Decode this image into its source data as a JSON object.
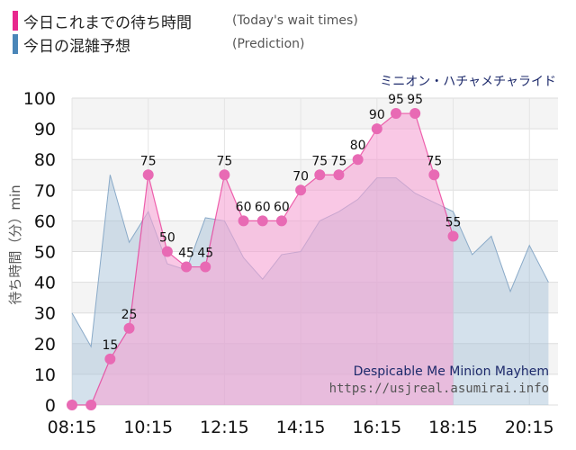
{
  "legend": {
    "today_label": "今日これまでの待ち時間",
    "today_sub": "(Today's wait times)",
    "prediction_label": "今日の混雑予想",
    "prediction_sub": "(Prediction)",
    "today_color": "#e8288e",
    "prediction_color": "#4a86b8"
  },
  "attraction_name": "ミニオン・ハチャメチャライド",
  "watermark": {
    "english_name": "Despicable Me Minion Mayhem",
    "url": "https://usjreal.asumirai.info"
  },
  "chart_data": {
    "type": "area",
    "ylabel": "待ち時間（分）min",
    "ylim": [
      0,
      100
    ],
    "xlim": [
      "08:15",
      "21:00"
    ],
    "yticks": [
      0,
      10,
      20,
      30,
      40,
      50,
      60,
      70,
      80,
      90,
      100
    ],
    "xticks": [
      "08:15",
      "10:15",
      "12:15",
      "14:15",
      "16:15",
      "18:15",
      "20:15"
    ],
    "grid": true,
    "series": [
      {
        "key": "today",
        "color": "#e8288e",
        "fill": "#f5a3d3",
        "points": [
          [
            "08:15",
            0
          ],
          [
            "08:45",
            0
          ],
          [
            "09:15",
            15
          ],
          [
            "09:45",
            25
          ],
          [
            "10:15",
            75
          ],
          [
            "10:45",
            50
          ],
          [
            "11:15",
            45
          ],
          [
            "11:45",
            45
          ],
          [
            "12:15",
            75
          ],
          [
            "12:45",
            60
          ],
          [
            "13:15",
            60
          ],
          [
            "13:45",
            60
          ],
          [
            "14:15",
            70
          ],
          [
            "14:45",
            75
          ],
          [
            "15:15",
            75
          ],
          [
            "15:45",
            80
          ],
          [
            "16:15",
            90
          ],
          [
            "16:45",
            95
          ],
          [
            "17:15",
            95
          ],
          [
            "17:45",
            75
          ],
          [
            "18:15",
            55
          ]
        ],
        "labels": [
          [
            "09:15",
            "15"
          ],
          [
            "09:45",
            "25"
          ],
          [
            "10:15",
            "75"
          ],
          [
            "10:45",
            "50"
          ],
          [
            "11:15",
            "45"
          ],
          [
            "11:45",
            "45"
          ],
          [
            "12:15",
            "75"
          ],
          [
            "12:45",
            "60"
          ],
          [
            "13:15",
            "60"
          ],
          [
            "13:45",
            "60"
          ],
          [
            "14:15",
            "70"
          ],
          [
            "14:45",
            "75"
          ],
          [
            "15:15",
            "75"
          ],
          [
            "15:45",
            "80"
          ],
          [
            "16:15",
            "90"
          ],
          [
            "16:45",
            "95"
          ],
          [
            "17:15",
            "95"
          ],
          [
            "17:45",
            "75"
          ],
          [
            "18:15",
            "55"
          ]
        ]
      },
      {
        "key": "prediction",
        "color": "#8aaac8",
        "fill": "#9fbdd4",
        "points": [
          [
            "08:15",
            30
          ],
          [
            "08:45",
            19
          ],
          [
            "09:15",
            75
          ],
          [
            "09:45",
            53
          ],
          [
            "10:15",
            63
          ],
          [
            "10:45",
            46
          ],
          [
            "11:15",
            44
          ],
          [
            "11:45",
            61
          ],
          [
            "12:15",
            60
          ],
          [
            "12:45",
            48
          ],
          [
            "13:15",
            41
          ],
          [
            "13:45",
            49
          ],
          [
            "14:15",
            50
          ],
          [
            "14:45",
            60
          ],
          [
            "15:15",
            63
          ],
          [
            "15:45",
            67
          ],
          [
            "16:15",
            74
          ],
          [
            "16:45",
            74
          ],
          [
            "17:15",
            69
          ],
          [
            "17:45",
            66
          ],
          [
            "18:15",
            63
          ],
          [
            "18:45",
            49
          ],
          [
            "19:15",
            55
          ],
          [
            "19:45",
            37
          ],
          [
            "20:15",
            52
          ],
          [
            "20:45",
            40
          ]
        ]
      }
    ]
  }
}
